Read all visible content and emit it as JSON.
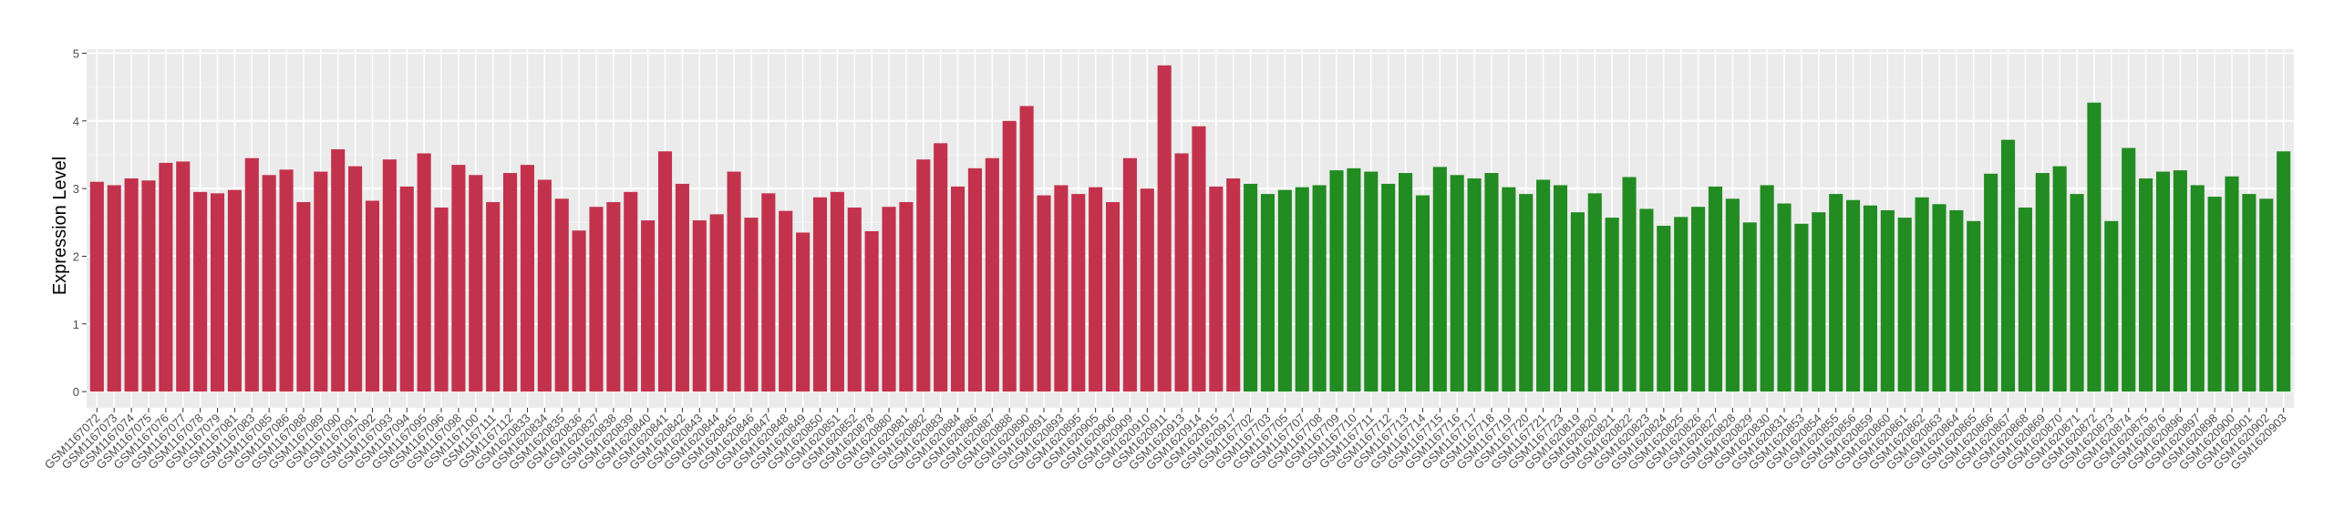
{
  "chart_data": {
    "type": "bar",
    "y_label": "Expression Level",
    "ylim": [
      -0.24,
      5.06
    ],
    "yticks": [
      0,
      1,
      2,
      3,
      4,
      5
    ],
    "grid": true,
    "series": [
      {
        "color": "#c3324c",
        "categories": [
          "GSM1167072",
          "GSM1167073",
          "GSM1167074",
          "GSM1167075",
          "GSM1167076",
          "GSM1167077",
          "GSM1167078",
          "GSM1167079",
          "GSM1167081",
          "GSM1167083",
          "GSM1167085",
          "GSM1167086",
          "GSM1167088",
          "GSM1167089",
          "GSM1167090",
          "GSM1167091",
          "GSM1167092",
          "GSM1167093",
          "GSM1167094",
          "GSM1167095",
          "GSM1167096",
          "GSM1167098",
          "GSM1167100",
          "GSM1167111",
          "GSM1167112",
          "GSM1620833",
          "GSM1620834",
          "GSM1620835",
          "GSM1620836",
          "GSM1620837",
          "GSM1620838",
          "GSM1620839",
          "GSM1620840",
          "GSM1620841",
          "GSM1620842",
          "GSM1620843",
          "GSM1620844",
          "GSM1620845",
          "GSM1620846",
          "GSM1620847",
          "GSM1620848",
          "GSM1620849",
          "GSM1620850",
          "GSM1620851",
          "GSM1620852",
          "GSM1620878",
          "GSM1620880",
          "GSM1620881",
          "GSM1620882",
          "GSM1620883",
          "GSM1620884",
          "GSM1620886",
          "GSM1620887",
          "GSM1620888",
          "GSM1620890",
          "GSM1620891",
          "GSM1620893",
          "GSM1620895",
          "GSM1620905",
          "GSM1620906",
          "GSM1620909",
          "GSM1620910",
          "GSM1620911",
          "GSM1620913",
          "GSM1620914",
          "GSM1620915",
          "GSM1620917"
        ],
        "values": [
          3.1,
          3.05,
          3.15,
          3.12,
          3.38,
          3.4,
          2.95,
          2.93,
          2.98,
          3.45,
          3.2,
          3.28,
          2.8,
          3.25,
          3.58,
          3.33,
          2.82,
          3.43,
          3.03,
          3.52,
          2.72,
          3.35,
          3.2,
          2.8,
          3.23,
          3.35,
          3.13,
          2.85,
          2.38,
          2.73,
          2.8,
          2.95,
          2.53,
          3.55,
          3.07,
          2.53,
          2.62,
          3.25,
          2.57,
          2.93,
          2.67,
          2.35,
          2.87,
          2.95,
          2.72,
          2.37,
          2.73,
          2.8,
          3.43,
          3.67,
          3.03,
          3.3,
          3.45,
          4.0,
          4.22,
          2.9,
          3.05,
          2.92,
          3.02,
          2.8,
          3.45,
          3.0,
          4.82,
          3.52,
          3.92,
          3.03,
          3.15
        ]
      },
      {
        "color": "#228b22",
        "categories": [
          "GSM1167702",
          "GSM1167703",
          "GSM1167705",
          "GSM1167707",
          "GSM1167708",
          "GSM1167709",
          "GSM1167710",
          "GSM1167711",
          "GSM1167712",
          "GSM1167713",
          "GSM1167714",
          "GSM1167715",
          "GSM1167716",
          "GSM1167717",
          "GSM1167718",
          "GSM1167719",
          "GSM1167720",
          "GSM1167721",
          "GSM1167723",
          "GSM1620819",
          "GSM1620820",
          "GSM1620821",
          "GSM1620822",
          "GSM1620823",
          "GSM1620824",
          "GSM1620825",
          "GSM1620826",
          "GSM1620827",
          "GSM1620828",
          "GSM1620829",
          "GSM1620830",
          "GSM1620831",
          "GSM1620853",
          "GSM1620854",
          "GSM1620855",
          "GSM1620856",
          "GSM1620859",
          "GSM1620860",
          "GSM1620861",
          "GSM1620862",
          "GSM1620863",
          "GSM1620864",
          "GSM1620865",
          "GSM1620866",
          "GSM1620867",
          "GSM1620868",
          "GSM1620869",
          "GSM1620870",
          "GSM1620871",
          "GSM1620872",
          "GSM1620873",
          "GSM1620874",
          "GSM1620875",
          "GSM1620876",
          "GSM1620896",
          "GSM1620897",
          "GSM1620898",
          "GSM1620900",
          "GSM1620901",
          "GSM1620902",
          "GSM1620903"
        ],
        "values": [
          3.07,
          2.92,
          2.98,
          3.02,
          3.05,
          3.27,
          3.3,
          3.25,
          3.07,
          3.23,
          2.9,
          3.32,
          3.2,
          3.15,
          3.23,
          3.02,
          2.92,
          3.13,
          3.05,
          2.65,
          2.93,
          2.57,
          3.17,
          2.7,
          2.45,
          2.58,
          2.73,
          3.03,
          2.85,
          2.5,
          3.05,
          2.78,
          2.48,
          2.65,
          2.92,
          2.83,
          2.75,
          2.68,
          2.57,
          2.87,
          2.77,
          2.68,
          2.52,
          3.22,
          3.72,
          2.72,
          3.23,
          3.33,
          2.92,
          4.27,
          2.52,
          3.6,
          3.15,
          3.25,
          3.27,
          3.05,
          2.88,
          3.18,
          2.92,
          2.85,
          3.55
        ]
      }
    ]
  }
}
